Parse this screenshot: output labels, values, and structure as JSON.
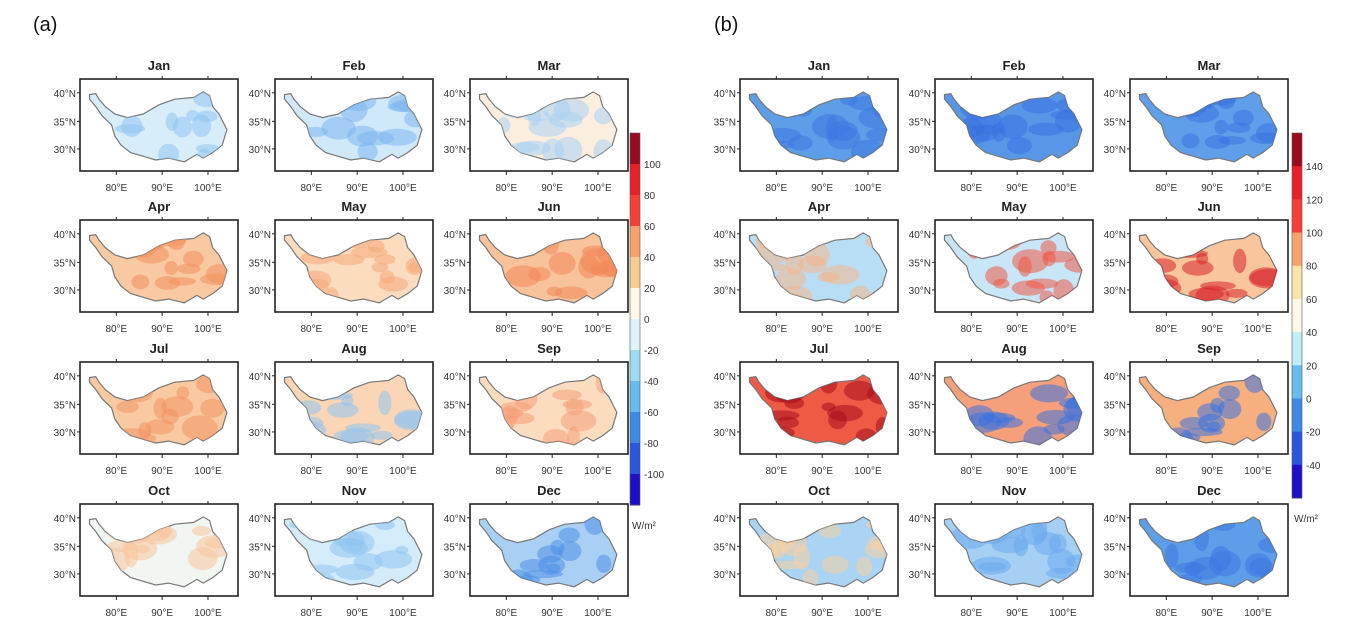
{
  "chart_data": [
    {
      "type": "heatmap",
      "panel_label": "(a)",
      "months": [
        "Jan",
        "Feb",
        "Mar",
        "Apr",
        "May",
        "Jun",
        "Jul",
        "Aug",
        "Sep",
        "Oct",
        "Nov",
        "Dec"
      ],
      "grid": "4 rows x 3 columns",
      "lat_ticks": [
        "40°N",
        "35°N",
        "30°N"
      ],
      "lon_ticks": [
        "80°E",
        "90°E",
        "100°E"
      ],
      "colorbar": {
        "unit": "W/m²",
        "labels": [
          100,
          80,
          60,
          40,
          20,
          0,
          -20,
          -40,
          -60,
          -80,
          -100
        ],
        "range": [
          -120,
          120
        ],
        "colors": [
          "#9b0a1f",
          "#e8202a",
          "#f5403a",
          "#f7a26a",
          "#f8cd90",
          "#fdf9e6",
          "#ddf4fa",
          "#9fdcf3",
          "#64bdee",
          "#3c8ae6",
          "#2a56e0",
          "#1e10c8"
        ]
      },
      "monthly_pattern": {
        "Jan": "mostly light blue, negative",
        "Feb": "mostly light blue, negative",
        "Mar": "mixed, slight positive in south-east",
        "Apr": "positive, orange",
        "May": "positive, light orange",
        "Jun": "positive, orange",
        "Jul": "positive, orange",
        "Aug": "mostly positive, blue in north-west",
        "Sep": "positive, light orange",
        "Oct": "near zero, positive in east",
        "Nov": "light blue, negative",
        "Dec": "blue, negative"
      }
    },
    {
      "type": "heatmap",
      "panel_label": "(b)",
      "months": [
        "Jan",
        "Feb",
        "Mar",
        "Apr",
        "May",
        "Jun",
        "Jul",
        "Aug",
        "Sep",
        "Oct",
        "Nov",
        "Dec"
      ],
      "grid": "4 rows x 3 columns",
      "lat_ticks": [
        "40°N",
        "35°N",
        "30°N"
      ],
      "lon_ticks": [
        "80°E",
        "90°E",
        "100°E"
      ],
      "colorbar": {
        "unit": "W/m²",
        "labels": [
          140,
          120,
          100,
          80,
          60,
          40,
          20,
          0,
          -20,
          -40
        ],
        "range": [
          -60,
          160
        ],
        "colors": [
          "#9b0a1f",
          "#e8202a",
          "#f5403a",
          "#f7a26a",
          "#fbe4a8",
          "#fdf9e6",
          "#bfeef9",
          "#64bdee",
          "#3c8ae6",
          "#2a56e0",
          "#1e10c8"
        ]
      },
      "monthly_pattern": {
        "Jan": "blue, negative",
        "Feb": "blue, negative",
        "Mar": "blue, negative",
        "Apr": "light blue with orange in south-east",
        "May": "mixed, red in east",
        "Jun": "positive, strong red in east",
        "Jul": "strong positive red, blue in north-west",
        "Aug": "red in east, blue in north-west",
        "Sep": "red in east, blue in north-west",
        "Oct": "light blue, orange patches",
        "Nov": "light blue",
        "Dec": "blue, negative"
      }
    }
  ]
}
